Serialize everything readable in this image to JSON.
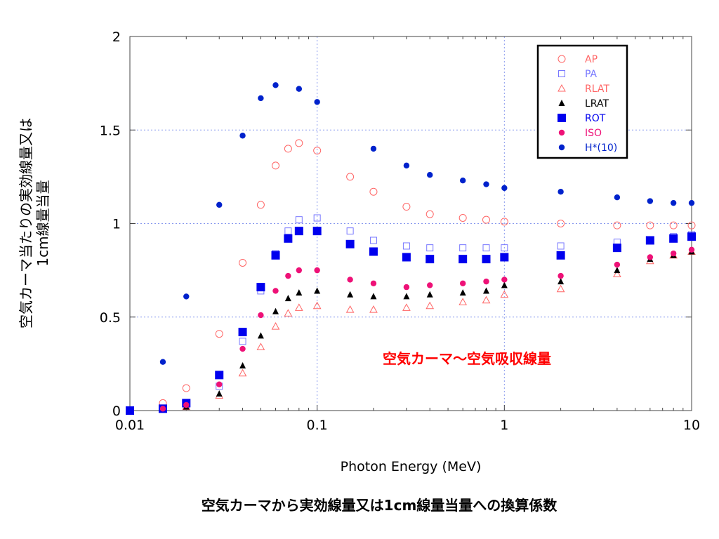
{
  "chart_data": {
    "type": "scatter",
    "title": "空気カーマから実効線量又は1cm線量当量への換算係数",
    "xlabel": "Photon Energy (MeV)",
    "ylabel_lines": [
      "空気カーマ当たりの実効線量又は",
      "1cm線量当量"
    ],
    "xscale": "log",
    "xlim": [
      0.01,
      10
    ],
    "ylim": [
      0,
      2
    ],
    "x_ticks": [
      0.01,
      0.1,
      1,
      10
    ],
    "x_tick_labels": [
      "0.01",
      "0.1",
      "1",
      "10"
    ],
    "y_ticks": [
      0,
      0.5,
      1,
      1.5,
      2
    ],
    "y_tick_labels": [
      "0",
      "0.5",
      "1",
      "1.5",
      "2"
    ],
    "grid": true,
    "legend_position": "top-right",
    "annotation": "空気カーマ〜空気吸収線量",
    "annotation_color": "#ff0000",
    "series": [
      {
        "name": "AP",
        "marker": "circle-open",
        "color": "#ff6666",
        "x": [
          0.01,
          0.015,
          0.02,
          0.03,
          0.04,
          0.05,
          0.06,
          0.07,
          0.08,
          0.1,
          0.15,
          0.2,
          0.3,
          0.4,
          0.6,
          0.8,
          1,
          2,
          4,
          6,
          8,
          10
        ],
        "y": [
          0.0,
          0.04,
          0.12,
          0.41,
          0.79,
          1.1,
          1.31,
          1.4,
          1.43,
          1.39,
          1.25,
          1.17,
          1.09,
          1.05,
          1.03,
          1.02,
          1.01,
          1.0,
          0.99,
          0.99,
          0.99,
          0.99
        ]
      },
      {
        "name": "PA",
        "marker": "square-open",
        "color": "#7777ff",
        "x": [
          0.01,
          0.015,
          0.02,
          0.03,
          0.04,
          0.05,
          0.06,
          0.07,
          0.08,
          0.1,
          0.15,
          0.2,
          0.3,
          0.4,
          0.6,
          0.8,
          1,
          2,
          4,
          6,
          8,
          10
        ],
        "y": [
          0.0,
          0.01,
          0.03,
          0.13,
          0.37,
          0.64,
          0.84,
          0.96,
          1.02,
          1.03,
          0.96,
          0.91,
          0.88,
          0.87,
          0.87,
          0.87,
          0.87,
          0.88,
          0.9,
          0.91,
          0.93,
          0.94
        ]
      },
      {
        "name": "RLAT",
        "marker": "triangle-open",
        "color": "#ff6666",
        "x": [
          0.01,
          0.015,
          0.02,
          0.03,
          0.04,
          0.05,
          0.06,
          0.07,
          0.08,
          0.1,
          0.15,
          0.2,
          0.3,
          0.4,
          0.6,
          0.8,
          1,
          2,
          4,
          6,
          8,
          10
        ],
        "y": [
          0.0,
          0.01,
          0.02,
          0.08,
          0.2,
          0.34,
          0.45,
          0.52,
          0.55,
          0.56,
          0.54,
          0.54,
          0.55,
          0.56,
          0.58,
          0.59,
          0.62,
          0.65,
          0.73,
          0.8,
          0.83,
          0.85
        ]
      },
      {
        "name": "LRAT",
        "marker": "triangle-filled",
        "color": "#000000",
        "x": [
          0.01,
          0.015,
          0.02,
          0.03,
          0.04,
          0.05,
          0.06,
          0.07,
          0.08,
          0.1,
          0.15,
          0.2,
          0.3,
          0.4,
          0.6,
          0.8,
          1,
          2,
          4,
          6,
          8,
          10
        ],
        "y": [
          0.0,
          0.01,
          0.02,
          0.09,
          0.24,
          0.4,
          0.53,
          0.6,
          0.63,
          0.64,
          0.62,
          0.61,
          0.61,
          0.62,
          0.63,
          0.64,
          0.67,
          0.69,
          0.75,
          0.81,
          0.83,
          0.85
        ]
      },
      {
        "name": "ROT",
        "marker": "square-filled",
        "color": "#0000ee",
        "x": [
          0.01,
          0.015,
          0.02,
          0.03,
          0.04,
          0.05,
          0.06,
          0.07,
          0.08,
          0.1,
          0.15,
          0.2,
          0.3,
          0.4,
          0.6,
          0.8,
          1,
          2,
          4,
          6,
          8,
          10
        ],
        "y": [
          0.0,
          0.01,
          0.04,
          0.19,
          0.42,
          0.66,
          0.83,
          0.92,
          0.96,
          0.96,
          0.89,
          0.85,
          0.82,
          0.81,
          0.81,
          0.81,
          0.82,
          0.83,
          0.87,
          0.91,
          0.92,
          0.93
        ]
      },
      {
        "name": "ISO",
        "marker": "circle-filled",
        "color": "#ee1177",
        "x": [
          0.015,
          0.02,
          0.03,
          0.04,
          0.05,
          0.06,
          0.07,
          0.08,
          0.1,
          0.15,
          0.2,
          0.3,
          0.4,
          0.6,
          0.8,
          1,
          2,
          4,
          6,
          8,
          10
        ],
        "y": [
          0.01,
          0.03,
          0.14,
          0.33,
          0.51,
          0.64,
          0.72,
          0.75,
          0.75,
          0.7,
          0.68,
          0.66,
          0.67,
          0.68,
          0.69,
          0.7,
          0.72,
          0.78,
          0.82,
          0.84,
          0.86
        ]
      },
      {
        "name": "H*(10)",
        "marker": "circle-filled",
        "color": "#0022cc",
        "x": [
          0.015,
          0.02,
          0.03,
          0.04,
          0.05,
          0.06,
          0.08,
          0.1,
          0.2,
          0.3,
          0.4,
          0.6,
          0.8,
          1,
          2,
          4,
          6,
          8,
          10
        ],
        "y": [
          0.26,
          0.61,
          1.1,
          1.47,
          1.67,
          1.74,
          1.72,
          1.65,
          1.4,
          1.31,
          1.26,
          1.23,
          1.21,
          1.19,
          1.17,
          1.14,
          1.12,
          1.11,
          1.11
        ]
      }
    ]
  }
}
